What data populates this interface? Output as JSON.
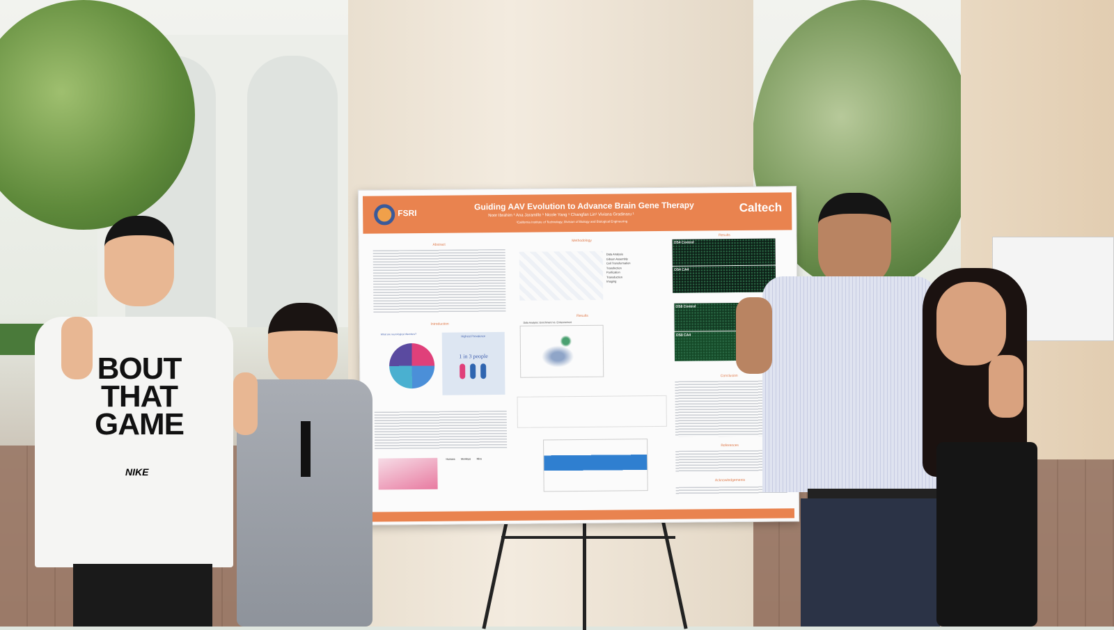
{
  "poster": {
    "logo_text": "FSRI",
    "title": "Guiding AAV Evolution to Advance Brain Gene Therapy",
    "authors": "Noor Ibrahim ¹   Ana Jaramillo ¹   Nicole Yang ¹   Changfan Lin¹   Viviana Gradinaru ¹",
    "affiliation": "¹California Institute of Technology, Division of Biology and Biological Engineering",
    "institution": "Caltech",
    "sections": {
      "abstract": "Abstract",
      "methodology": "Methodology",
      "results_top": "Results",
      "results_mid": "Results",
      "introduction": "Introduction",
      "conclusion": "Conclusion",
      "references": "References",
      "acknowledgements": "Acknowledgements"
    },
    "method_steps": [
      "Data Analysis",
      "Gibson Assembly",
      "Cell Transformation",
      "Transfection",
      "Purification",
      "Transduction",
      "Imaging"
    ],
    "scatter_title": "Data Analysis: Enrichment Vs. Enhancement",
    "intro_q": "What are neurological disorders?",
    "prevalence_title": "Highest Prevalence",
    "prevalence_stat": "1 in 3 people",
    "table_headers": [
      "Humans",
      "Monkeys",
      "Mice"
    ],
    "micro_labels": [
      "OS4 Control",
      "OS4 CA4",
      "OS8 Control",
      "OS8 CA4"
    ]
  },
  "shirt": {
    "lines": [
      "BOUT",
      "THAT",
      "GAME"
    ],
    "brand": "NIKE"
  },
  "colors": {
    "poster_accent": "#e9834f",
    "micro_green": "#2a6a45"
  }
}
